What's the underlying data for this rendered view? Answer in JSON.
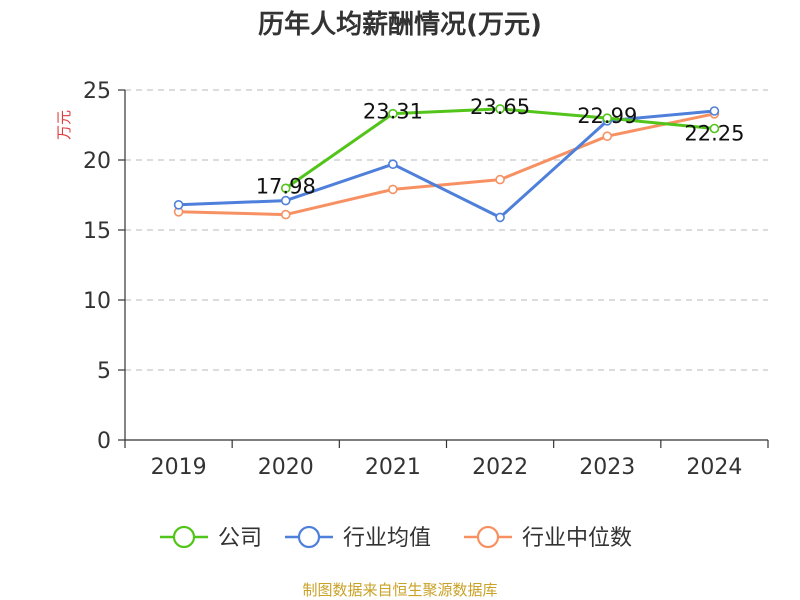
{
  "chart_data": {
    "type": "line",
    "title": "历年人均薪酬情况(万元)",
    "ylabel": "万元",
    "xlabel": "",
    "categories": [
      "2019",
      "2020",
      "2021",
      "2022",
      "2023",
      "2024"
    ],
    "ylim": [
      0,
      25
    ],
    "yticks": [
      0,
      5,
      10,
      15,
      20,
      25
    ],
    "grid": true,
    "legend_position": "bottom",
    "series": [
      {
        "name": "公司",
        "color": "#52c41a",
        "values": [
          null,
          17.98,
          23.31,
          23.65,
          22.99,
          22.25
        ],
        "labels": [
          "",
          "17.98",
          "23.31",
          "23.65",
          "22.99",
          "22.25"
        ]
      },
      {
        "name": "行业均值",
        "color": "#4e7fdb",
        "values": [
          16.8,
          17.1,
          19.7,
          15.9,
          22.8,
          23.5
        ],
        "labels": []
      },
      {
        "name": "行业中位数",
        "color": "#f79163",
        "values": [
          16.3,
          16.1,
          17.9,
          18.6,
          21.7,
          23.3
        ],
        "labels": []
      }
    ]
  },
  "source_text": "制图数据来自恒生聚源数据库",
  "source_color": "#c9a227",
  "ylabel_color": "#e03c3c"
}
